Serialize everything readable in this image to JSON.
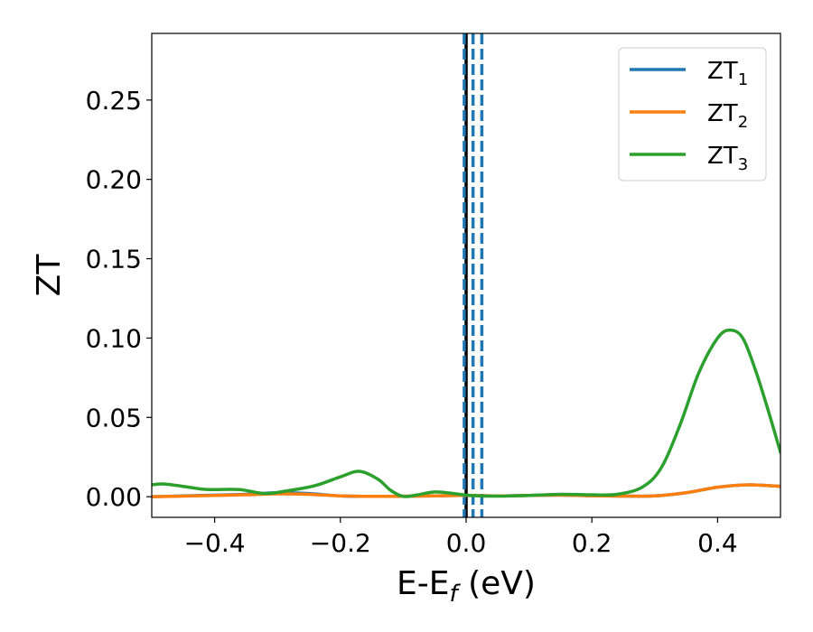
{
  "chart_data": {
    "type": "line",
    "title": "",
    "xlabel": "E-E",
    "xlabel_subscript": "f",
    "xlabel_unit": " (eV)",
    "ylabel": "ZT",
    "xlim": [
      -0.5,
      0.5
    ],
    "ylim": [
      -0.013,
      0.292
    ],
    "xticks": [
      -0.4,
      -0.2,
      0.0,
      0.2,
      0.4
    ],
    "xtick_labels": [
      "−0.4",
      "−0.2",
      "0.0",
      "0.2",
      "0.4"
    ],
    "yticks": [
      0.0,
      0.05,
      0.1,
      0.15,
      0.2,
      0.25
    ],
    "ytick_labels": [
      "0.00",
      "0.05",
      "0.10",
      "0.15",
      "0.20",
      "0.25"
    ],
    "grid": false,
    "legend_position": "top-right",
    "vertical_lines": [
      {
        "x": 0.0,
        "style": "solid",
        "color": "#000000"
      },
      {
        "x": -0.003,
        "style": "dashed",
        "color": "#1f77b4"
      },
      {
        "x": 0.011,
        "style": "dashed",
        "color": "#1f77b4"
      },
      {
        "x": 0.025,
        "style": "dashed",
        "color": "#1f77b4"
      }
    ],
    "series": [
      {
        "name": "ZT",
        "subscript": "1",
        "color": "#1f77b4",
        "x": [
          -0.5,
          -0.45,
          -0.4,
          -0.35,
          -0.3,
          -0.25,
          -0.2,
          -0.15,
          -0.1,
          -0.05,
          0.0,
          0.05,
          0.1,
          0.15,
          0.2,
          0.25,
          0.3,
          0.35,
          0.4,
          0.45,
          0.5
        ],
        "y": [
          0.0,
          0.0005,
          0.001,
          0.0015,
          0.0025,
          0.002,
          0.0005,
          0.0002,
          0.0003,
          0.0005,
          0.0008,
          0.0005,
          0.0008,
          0.001,
          0.0006,
          0.0004,
          0.0005,
          0.0025,
          0.006,
          0.0075,
          0.0065
        ]
      },
      {
        "name": "ZT",
        "subscript": "2",
        "color": "#ff7f0e",
        "x": [
          -0.5,
          -0.45,
          -0.4,
          -0.35,
          -0.3,
          -0.25,
          -0.2,
          -0.15,
          -0.1,
          -0.05,
          0.0,
          0.05,
          0.1,
          0.15,
          0.2,
          0.25,
          0.3,
          0.35,
          0.4,
          0.45,
          0.5
        ],
        "y": [
          0.0,
          0.0004,
          0.0008,
          0.0012,
          0.0018,
          0.0015,
          0.0005,
          0.0002,
          0.0003,
          0.0005,
          0.0008,
          0.0005,
          0.0008,
          0.001,
          0.0006,
          0.0004,
          0.0005,
          0.0025,
          0.006,
          0.0075,
          0.0065
        ]
      },
      {
        "name": "ZT",
        "subscript": "3",
        "color": "#2ca02c",
        "x": [
          -0.5,
          -0.48,
          -0.45,
          -0.42,
          -0.4,
          -0.36,
          -0.32,
          -0.28,
          -0.24,
          -0.2,
          -0.17,
          -0.14,
          -0.12,
          -0.1,
          -0.08,
          -0.05,
          -0.02,
          0.0,
          0.03,
          0.06,
          0.1,
          0.15,
          0.2,
          0.24,
          0.28,
          0.31,
          0.34,
          0.37,
          0.4,
          0.42,
          0.44,
          0.46,
          0.48,
          0.5
        ],
        "y": [
          0.0075,
          0.008,
          0.0065,
          0.0048,
          0.0045,
          0.0045,
          0.002,
          0.004,
          0.007,
          0.0125,
          0.016,
          0.011,
          0.004,
          0.0002,
          0.001,
          0.003,
          0.002,
          0.001,
          0.0004,
          0.0004,
          0.0008,
          0.0015,
          0.0012,
          0.0015,
          0.006,
          0.018,
          0.045,
          0.078,
          0.1,
          0.105,
          0.1,
          0.08,
          0.055,
          0.028
        ]
      }
    ]
  }
}
